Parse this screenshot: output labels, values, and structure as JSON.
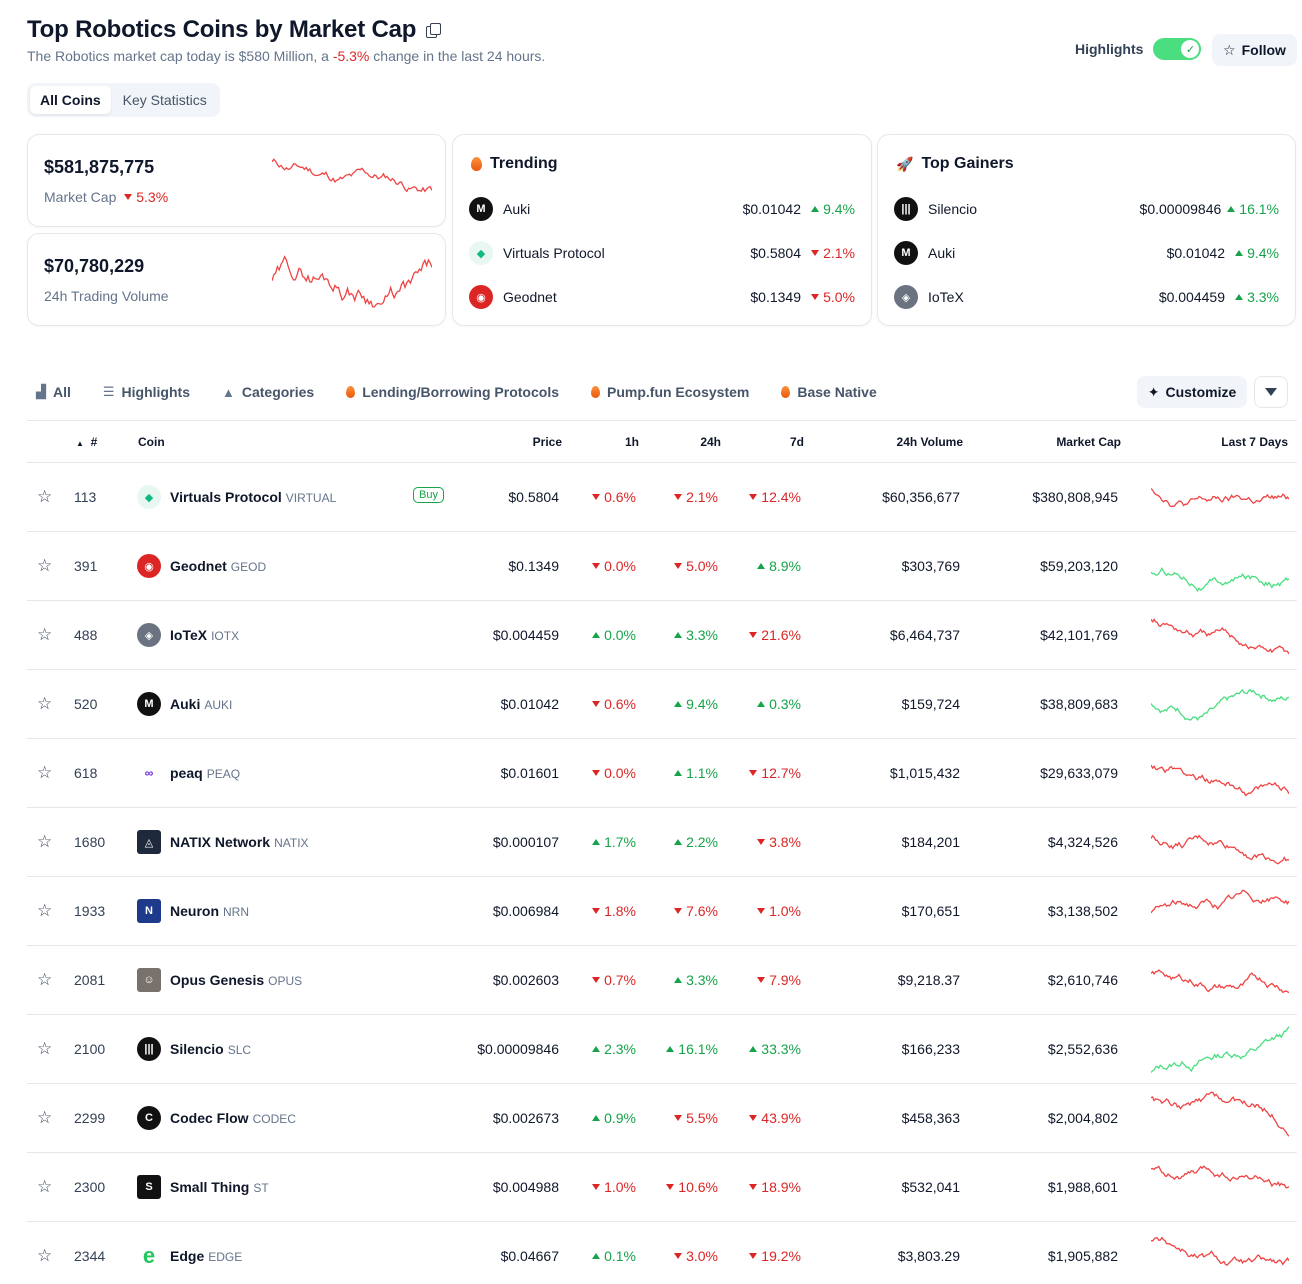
{
  "header": {
    "title": "Top Robotics Coins by Market Cap",
    "subtitle_pre": "The Robotics market cap today is $580 Million, a ",
    "subtitle_change": "-5.3%",
    "subtitle_post": " change in the last 24 hours.",
    "highlights_label": "Highlights",
    "highlights_on": true,
    "follow_label": "Follow"
  },
  "tabs": [
    "All Coins",
    "Key Statistics"
  ],
  "market_cap": {
    "value": "$581,875,775",
    "label": "Market Cap",
    "change": "5.3%",
    "direction": "down"
  },
  "volume": {
    "value": "$70,780,229",
    "label": "24h Trading Volume"
  },
  "trending": {
    "title": "Trending",
    "items": [
      {
        "name": "Auki",
        "price": "$0.01042",
        "change": "9.4%",
        "direction": "up",
        "icon": "auki-icon"
      },
      {
        "name": "Virtuals Protocol",
        "price": "$0.5804",
        "change": "2.1%",
        "direction": "down",
        "icon": "virtuals-icon"
      },
      {
        "name": "Geodnet",
        "price": "$0.1349",
        "change": "5.0%",
        "direction": "down",
        "icon": "geodnet-icon"
      }
    ]
  },
  "top_gainers": {
    "title": "Top Gainers",
    "items": [
      {
        "name": "Silencio",
        "price": "$0.00009846",
        "change": "16.1%",
        "direction": "up",
        "icon": "silencio-icon"
      },
      {
        "name": "Auki",
        "price": "$0.01042",
        "change": "9.4%",
        "direction": "up",
        "icon": "auki-icon"
      },
      {
        "name": "IoTeX",
        "price": "$0.004459",
        "change": "3.3%",
        "direction": "up",
        "icon": "iotex-icon"
      }
    ]
  },
  "filters": [
    "All",
    "Highlights",
    "Categories",
    "Lending/Borrowing Protocols",
    "Pump.fun Ecosystem",
    "Base Native"
  ],
  "customize_label": "Customize",
  "columns": {
    "rank": "#",
    "coin": "Coin",
    "price": "Price",
    "h1": "1h",
    "h24": "24h",
    "d7": "7d",
    "volume": "24h Volume",
    "mcap": "Market Cap",
    "last7": "Last 7 Days"
  },
  "buy_label": "Buy",
  "colors": {
    "up": "#16a34a",
    "down": "#dc2626",
    "spark_up": "#4ade80",
    "spark_down": "#ef4444"
  },
  "coins": [
    {
      "rank": "113",
      "name": "Virtuals Protocol",
      "symbol": "VIRTUAL",
      "price": "$0.5804",
      "h1": "0.6%",
      "h1_dir": "down",
      "h24": "2.1%",
      "h24_dir": "down",
      "d7": "12.4%",
      "d7_dir": "down",
      "volume": "$60,356,677",
      "mcap": "$380,808,945",
      "buy": true,
      "icon": "virtuals-icon"
    },
    {
      "rank": "391",
      "name": "Geodnet",
      "symbol": "GEOD",
      "price": "$0.1349",
      "h1": "0.0%",
      "h1_dir": "down",
      "h24": "5.0%",
      "h24_dir": "down",
      "d7": "8.9%",
      "d7_dir": "up",
      "volume": "$303,769",
      "mcap": "$59,203,120",
      "buy": false,
      "icon": "geodnet-icon"
    },
    {
      "rank": "488",
      "name": "IoTeX",
      "symbol": "IOTX",
      "price": "$0.004459",
      "h1": "0.0%",
      "h1_dir": "up",
      "h24": "3.3%",
      "h24_dir": "up",
      "d7": "21.6%",
      "d7_dir": "down",
      "volume": "$6,464,737",
      "mcap": "$42,101,769",
      "buy": false,
      "icon": "iotex-icon"
    },
    {
      "rank": "520",
      "name": "Auki",
      "symbol": "AUKI",
      "price": "$0.01042",
      "h1": "0.6%",
      "h1_dir": "down",
      "h24": "9.4%",
      "h24_dir": "up",
      "d7": "0.3%",
      "d7_dir": "up",
      "volume": "$159,724",
      "mcap": "$38,809,683",
      "buy": false,
      "icon": "auki-icon"
    },
    {
      "rank": "618",
      "name": "peaq",
      "symbol": "PEAQ",
      "price": "$0.01601",
      "h1": "0.0%",
      "h1_dir": "down",
      "h24": "1.1%",
      "h24_dir": "up",
      "d7": "12.7%",
      "d7_dir": "down",
      "volume": "$1,015,432",
      "mcap": "$29,633,079",
      "buy": false,
      "icon": "peaq-icon"
    },
    {
      "rank": "1680",
      "name": "NATIX Network",
      "symbol": "NATIX",
      "price": "$0.000107",
      "h1": "1.7%",
      "h1_dir": "up",
      "h24": "2.2%",
      "h24_dir": "up",
      "d7": "3.8%",
      "d7_dir": "down",
      "volume": "$184,201",
      "mcap": "$4,324,526",
      "buy": false,
      "icon": "natix-icon"
    },
    {
      "rank": "1933",
      "name": "Neuron",
      "symbol": "NRN",
      "price": "$0.006984",
      "h1": "1.8%",
      "h1_dir": "down",
      "h24": "7.6%",
      "h24_dir": "down",
      "d7": "1.0%",
      "d7_dir": "down",
      "volume": "$170,651",
      "mcap": "$3,138,502",
      "buy": false,
      "icon": "neuron-icon"
    },
    {
      "rank": "2081",
      "name": "Opus Genesis",
      "symbol": "OPUS",
      "price": "$0.002603",
      "h1": "0.7%",
      "h1_dir": "down",
      "h24": "3.3%",
      "h24_dir": "up",
      "d7": "7.9%",
      "d7_dir": "down",
      "volume": "$9,218.37",
      "mcap": "$2,610,746",
      "buy": false,
      "icon": "opus-icon"
    },
    {
      "rank": "2100",
      "name": "Silencio",
      "symbol": "SLC",
      "price": "$0.00009846",
      "h1": "2.3%",
      "h1_dir": "up",
      "h24": "16.1%",
      "h24_dir": "up",
      "d7": "33.3%",
      "d7_dir": "up",
      "volume": "$166,233",
      "mcap": "$2,552,636",
      "buy": false,
      "icon": "silencio-icon"
    },
    {
      "rank": "2299",
      "name": "Codec Flow",
      "symbol": "CODEC",
      "price": "$0.002673",
      "h1": "0.9%",
      "h1_dir": "up",
      "h24": "5.5%",
      "h24_dir": "down",
      "d7": "43.9%",
      "d7_dir": "down",
      "volume": "$458,363",
      "mcap": "$2,004,802",
      "buy": false,
      "icon": "codec-icon"
    },
    {
      "rank": "2300",
      "name": "Small Thing",
      "symbol": "ST",
      "price": "$0.004988",
      "h1": "1.0%",
      "h1_dir": "down",
      "h24": "10.6%",
      "h24_dir": "down",
      "d7": "18.9%",
      "d7_dir": "down",
      "volume": "$532,041",
      "mcap": "$1,988,601",
      "buy": false,
      "icon": "smallthing-icon"
    },
    {
      "rank": "2344",
      "name": "Edge",
      "symbol": "EDGE",
      "price": "$0.04667",
      "h1": "0.1%",
      "h1_dir": "up",
      "h24": "3.0%",
      "h24_dir": "down",
      "d7": "19.2%",
      "d7_dir": "down",
      "volume": "$3,803.29",
      "mcap": "$1,905,882",
      "buy": false,
      "icon": "edge-icon"
    }
  ]
}
